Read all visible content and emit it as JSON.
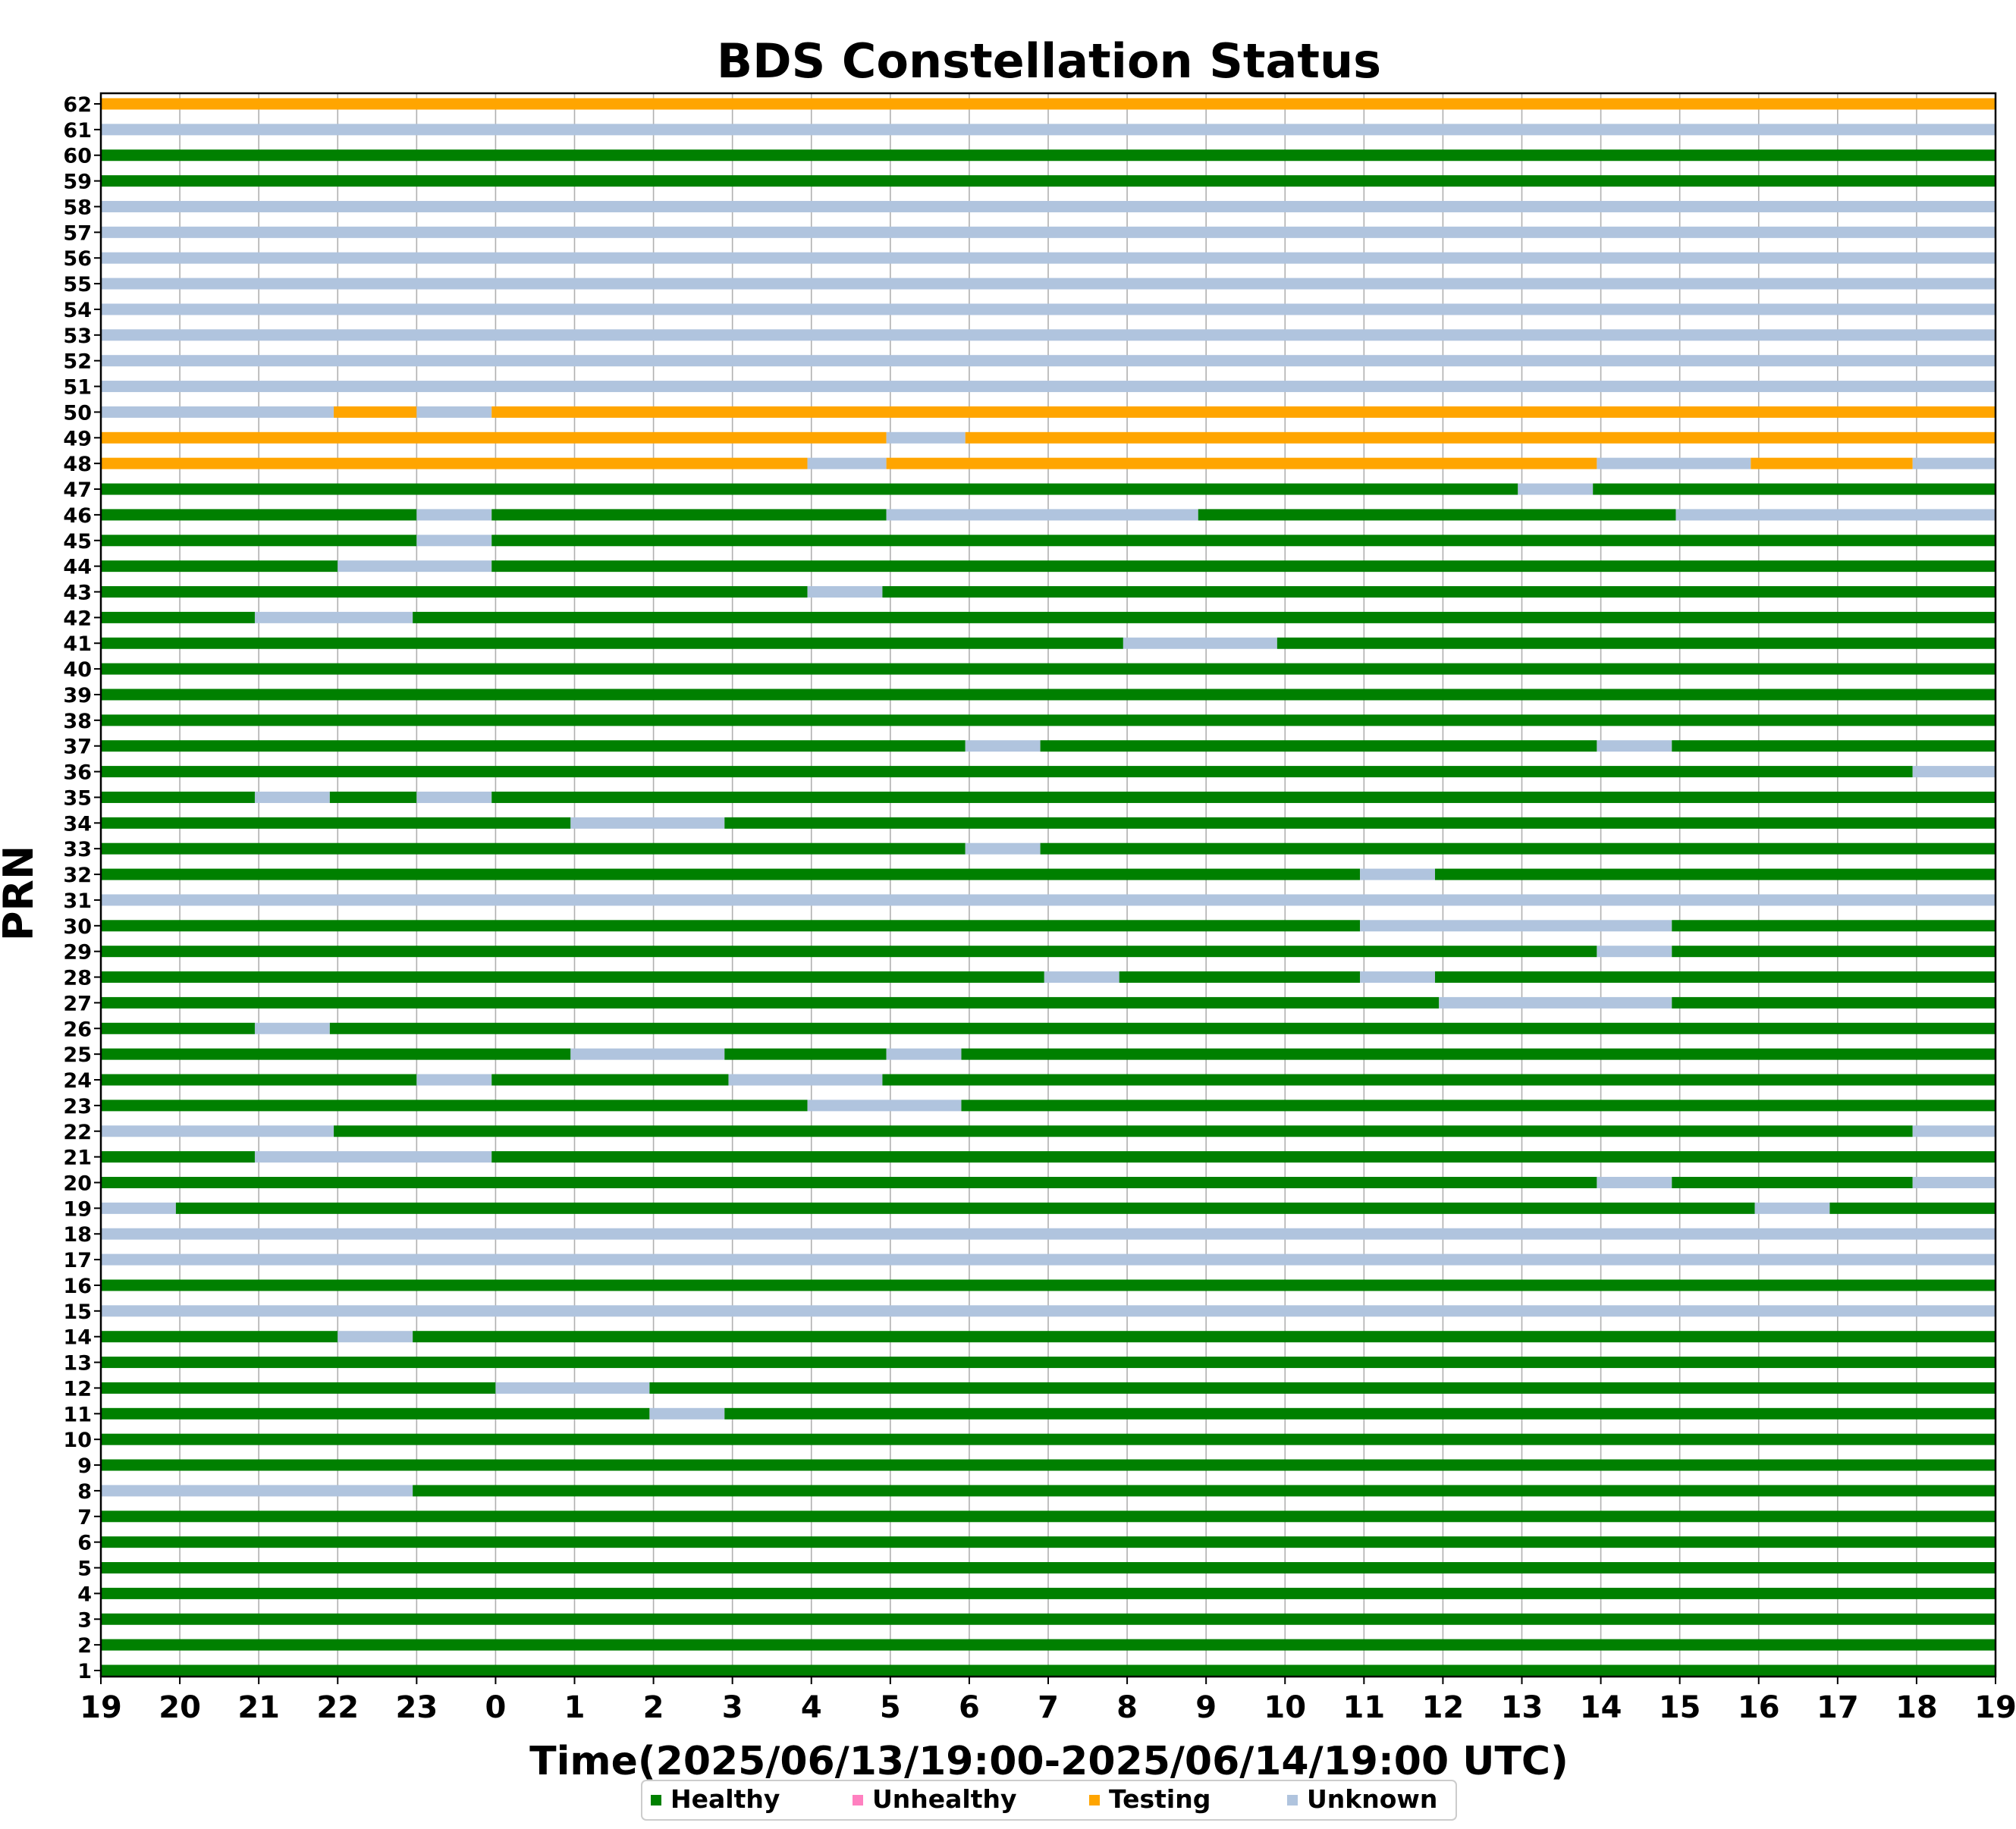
{
  "chart_data": {
    "type": "timeline",
    "title": "BDS Constellation Status",
    "xlabel": "Time(2025/06/13/19:00-2025/06/14/19:00 UTC)",
    "ylabel": "PRN",
    "x_unit": "hour_of_day_utc",
    "xlim": [
      19,
      43
    ],
    "x_tick_labels": [
      "19",
      "20",
      "21",
      "22",
      "23",
      "0",
      "1",
      "2",
      "3",
      "4",
      "5",
      "6",
      "7",
      "8",
      "9",
      "10",
      "11",
      "12",
      "13",
      "14",
      "15",
      "16",
      "17",
      "18",
      "19"
    ],
    "ylim": [
      1,
      62
    ],
    "grid": "vertical",
    "legend_placement": "bottom-center",
    "status_colors": {
      "Healthy": "#008000",
      "Unhealthy": "#ff80c0",
      "Testing": "#ffa500",
      "Unknown": "#b0c4de"
    },
    "legend": [
      {
        "key": "Healthy",
        "label": "Healthy"
      },
      {
        "key": "Unhealthy",
        "label": "Unhealthy"
      },
      {
        "key": "Testing",
        "label": "Testing"
      },
      {
        "key": "Unknown",
        "label": "Unknown"
      }
    ],
    "series": [
      {
        "prn": 62,
        "segments": [
          [
            19,
            43,
            "Testing"
          ]
        ]
      },
      {
        "prn": 61,
        "segments": [
          [
            19,
            43,
            "Unknown"
          ]
        ]
      },
      {
        "prn": 60,
        "segments": [
          [
            19,
            43,
            "Healthy"
          ]
        ]
      },
      {
        "prn": 59,
        "segments": [
          [
            19,
            43,
            "Healthy"
          ]
        ]
      },
      {
        "prn": 58,
        "segments": [
          [
            19,
            43,
            "Unknown"
          ]
        ]
      },
      {
        "prn": 57,
        "segments": [
          [
            19,
            43,
            "Unknown"
          ]
        ]
      },
      {
        "prn": 56,
        "segments": [
          [
            19,
            43,
            "Unknown"
          ]
        ]
      },
      {
        "prn": 55,
        "segments": [
          [
            19,
            43,
            "Unknown"
          ]
        ]
      },
      {
        "prn": 54,
        "segments": [
          [
            19,
            43,
            "Unknown"
          ]
        ]
      },
      {
        "prn": 53,
        "segments": [
          [
            19,
            43,
            "Unknown"
          ]
        ]
      },
      {
        "prn": 52,
        "segments": [
          [
            19,
            43,
            "Unknown"
          ]
        ]
      },
      {
        "prn": 51,
        "segments": [
          [
            19,
            43,
            "Unknown"
          ]
        ]
      },
      {
        "prn": 50,
        "segments": [
          [
            19,
            21.95,
            "Unknown"
          ],
          [
            21.95,
            23,
            "Testing"
          ],
          [
            23,
            23.95,
            "Unknown"
          ],
          [
            23.95,
            43,
            "Testing"
          ]
        ]
      },
      {
        "prn": 49,
        "segments": [
          [
            19,
            28.95,
            "Testing"
          ],
          [
            28.95,
            29.95,
            "Unknown"
          ],
          [
            29.95,
            43,
            "Testing"
          ]
        ]
      },
      {
        "prn": 48,
        "segments": [
          [
            19,
            27.95,
            "Testing"
          ],
          [
            27.95,
            28.95,
            "Unknown"
          ],
          [
            28.95,
            37.95,
            "Testing"
          ],
          [
            37.95,
            39.9,
            "Unknown"
          ],
          [
            39.9,
            41.95,
            "Testing"
          ],
          [
            41.95,
            43,
            "Unknown"
          ]
        ]
      },
      {
        "prn": 47,
        "segments": [
          [
            19,
            36.95,
            "Healthy"
          ],
          [
            36.95,
            37.9,
            "Unknown"
          ],
          [
            37.9,
            43,
            "Healthy"
          ]
        ]
      },
      {
        "prn": 46,
        "segments": [
          [
            19,
            23,
            "Healthy"
          ],
          [
            23,
            23.95,
            "Unknown"
          ],
          [
            23.95,
            28.95,
            "Healthy"
          ],
          [
            28.95,
            32.9,
            "Unknown"
          ],
          [
            32.9,
            38.95,
            "Healthy"
          ],
          [
            38.95,
            43,
            "Unknown"
          ]
        ]
      },
      {
        "prn": 45,
        "segments": [
          [
            19,
            23,
            "Healthy"
          ],
          [
            23,
            23.95,
            "Unknown"
          ],
          [
            23.95,
            43,
            "Healthy"
          ]
        ]
      },
      {
        "prn": 44,
        "segments": [
          [
            19,
            22,
            "Healthy"
          ],
          [
            22,
            23.95,
            "Unknown"
          ],
          [
            23.95,
            43,
            "Healthy"
          ]
        ]
      },
      {
        "prn": 43,
        "segments": [
          [
            19,
            27.95,
            "Healthy"
          ],
          [
            27.95,
            28.9,
            "Unknown"
          ],
          [
            28.9,
            43,
            "Healthy"
          ]
        ]
      },
      {
        "prn": 42,
        "segments": [
          [
            19,
            20.95,
            "Healthy"
          ],
          [
            20.95,
            22.95,
            "Unknown"
          ],
          [
            22.95,
            43,
            "Healthy"
          ]
        ]
      },
      {
        "prn": 41,
        "segments": [
          [
            19,
            31.95,
            "Healthy"
          ],
          [
            31.95,
            33.9,
            "Unknown"
          ],
          [
            33.9,
            43,
            "Healthy"
          ]
        ]
      },
      {
        "prn": 40,
        "segments": [
          [
            19,
            43,
            "Healthy"
          ]
        ]
      },
      {
        "prn": 39,
        "segments": [
          [
            19,
            43,
            "Healthy"
          ]
        ]
      },
      {
        "prn": 38,
        "segments": [
          [
            19,
            43,
            "Healthy"
          ]
        ]
      },
      {
        "prn": 37,
        "segments": [
          [
            19,
            29.95,
            "Healthy"
          ],
          [
            29.95,
            30.9,
            "Unknown"
          ],
          [
            30.9,
            37.95,
            "Healthy"
          ],
          [
            37.95,
            38.9,
            "Unknown"
          ],
          [
            38.9,
            43,
            "Healthy"
          ]
        ]
      },
      {
        "prn": 36,
        "segments": [
          [
            19,
            41.95,
            "Healthy"
          ],
          [
            41.95,
            43,
            "Unknown"
          ]
        ]
      },
      {
        "prn": 35,
        "segments": [
          [
            19,
            20.95,
            "Healthy"
          ],
          [
            20.95,
            21.9,
            "Unknown"
          ],
          [
            21.9,
            23,
            "Healthy"
          ],
          [
            23,
            23.95,
            "Unknown"
          ],
          [
            23.95,
            43,
            "Healthy"
          ]
        ]
      },
      {
        "prn": 34,
        "segments": [
          [
            19,
            24.95,
            "Healthy"
          ],
          [
            24.95,
            26.9,
            "Unknown"
          ],
          [
            26.9,
            43,
            "Healthy"
          ]
        ]
      },
      {
        "prn": 33,
        "segments": [
          [
            19,
            29.95,
            "Healthy"
          ],
          [
            29.95,
            30.9,
            "Unknown"
          ],
          [
            30.9,
            43,
            "Healthy"
          ]
        ]
      },
      {
        "prn": 32,
        "segments": [
          [
            19,
            34.95,
            "Healthy"
          ],
          [
            34.95,
            35.9,
            "Unknown"
          ],
          [
            35.9,
            43,
            "Healthy"
          ]
        ]
      },
      {
        "prn": 31,
        "segments": [
          [
            19,
            43,
            "Unknown"
          ]
        ]
      },
      {
        "prn": 30,
        "segments": [
          [
            19,
            34.95,
            "Healthy"
          ],
          [
            34.95,
            38.9,
            "Unknown"
          ],
          [
            38.9,
            43,
            "Healthy"
          ]
        ]
      },
      {
        "prn": 29,
        "segments": [
          [
            19,
            37.95,
            "Healthy"
          ],
          [
            37.95,
            38.9,
            "Unknown"
          ],
          [
            38.9,
            43,
            "Healthy"
          ]
        ]
      },
      {
        "prn": 28,
        "segments": [
          [
            19,
            30.95,
            "Healthy"
          ],
          [
            30.95,
            31.9,
            "Unknown"
          ],
          [
            31.9,
            34.95,
            "Healthy"
          ],
          [
            34.95,
            35.9,
            "Unknown"
          ],
          [
            35.9,
            43,
            "Healthy"
          ]
        ]
      },
      {
        "prn": 27,
        "segments": [
          [
            19,
            35.95,
            "Healthy"
          ],
          [
            35.95,
            38.9,
            "Unknown"
          ],
          [
            38.9,
            43,
            "Healthy"
          ]
        ]
      },
      {
        "prn": 26,
        "segments": [
          [
            19,
            20.95,
            "Healthy"
          ],
          [
            20.95,
            21.9,
            "Unknown"
          ],
          [
            21.9,
            43,
            "Healthy"
          ]
        ]
      },
      {
        "prn": 25,
        "segments": [
          [
            19,
            24.95,
            "Healthy"
          ],
          [
            24.95,
            26.9,
            "Unknown"
          ],
          [
            26.9,
            28.95,
            "Healthy"
          ],
          [
            28.95,
            29.9,
            "Unknown"
          ],
          [
            29.9,
            43,
            "Healthy"
          ]
        ]
      },
      {
        "prn": 24,
        "segments": [
          [
            19,
            23,
            "Healthy"
          ],
          [
            23,
            23.95,
            "Unknown"
          ],
          [
            23.95,
            26.95,
            "Healthy"
          ],
          [
            26.95,
            28.9,
            "Unknown"
          ],
          [
            28.9,
            43,
            "Healthy"
          ]
        ]
      },
      {
        "prn": 23,
        "segments": [
          [
            19,
            27.95,
            "Healthy"
          ],
          [
            27.95,
            29.9,
            "Unknown"
          ],
          [
            29.9,
            43,
            "Healthy"
          ]
        ]
      },
      {
        "prn": 22,
        "segments": [
          [
            19,
            21.95,
            "Unknown"
          ],
          [
            21.95,
            41.95,
            "Healthy"
          ],
          [
            41.95,
            43,
            "Unknown"
          ]
        ]
      },
      {
        "prn": 21,
        "segments": [
          [
            19,
            20.95,
            "Healthy"
          ],
          [
            20.95,
            23.95,
            "Unknown"
          ],
          [
            23.95,
            43,
            "Healthy"
          ]
        ]
      },
      {
        "prn": 20,
        "segments": [
          [
            19,
            37.95,
            "Healthy"
          ],
          [
            37.95,
            38.9,
            "Unknown"
          ],
          [
            38.9,
            41.95,
            "Healthy"
          ],
          [
            41.95,
            43,
            "Unknown"
          ]
        ]
      },
      {
        "prn": 19,
        "segments": [
          [
            19,
            19.95,
            "Unknown"
          ],
          [
            19.95,
            39.95,
            "Healthy"
          ],
          [
            39.95,
            40.9,
            "Unknown"
          ],
          [
            40.9,
            43,
            "Healthy"
          ]
        ]
      },
      {
        "prn": 18,
        "segments": [
          [
            19,
            43,
            "Unknown"
          ]
        ]
      },
      {
        "prn": 17,
        "segments": [
          [
            19,
            43,
            "Unknown"
          ]
        ]
      },
      {
        "prn": 16,
        "segments": [
          [
            19,
            43,
            "Healthy"
          ]
        ]
      },
      {
        "prn": 15,
        "segments": [
          [
            19,
            43,
            "Unknown"
          ]
        ]
      },
      {
        "prn": 14,
        "segments": [
          [
            19,
            22,
            "Healthy"
          ],
          [
            22,
            22.95,
            "Unknown"
          ],
          [
            22.95,
            43,
            "Healthy"
          ]
        ]
      },
      {
        "prn": 13,
        "segments": [
          [
            19,
            43,
            "Healthy"
          ]
        ]
      },
      {
        "prn": 12,
        "segments": [
          [
            19,
            24,
            "Healthy"
          ],
          [
            24,
            25.95,
            "Unknown"
          ],
          [
            25.95,
            43,
            "Healthy"
          ]
        ]
      },
      {
        "prn": 11,
        "segments": [
          [
            19,
            25.95,
            "Healthy"
          ],
          [
            25.95,
            26.9,
            "Unknown"
          ],
          [
            26.9,
            43,
            "Healthy"
          ]
        ]
      },
      {
        "prn": 10,
        "segments": [
          [
            19,
            43,
            "Healthy"
          ]
        ]
      },
      {
        "prn": 9,
        "segments": [
          [
            19,
            43,
            "Healthy"
          ]
        ]
      },
      {
        "prn": 8,
        "segments": [
          [
            19,
            22.95,
            "Unknown"
          ],
          [
            22.95,
            43,
            "Healthy"
          ]
        ]
      },
      {
        "prn": 7,
        "segments": [
          [
            19,
            43,
            "Healthy"
          ]
        ]
      },
      {
        "prn": 6,
        "segments": [
          [
            19,
            43,
            "Healthy"
          ]
        ]
      },
      {
        "prn": 5,
        "segments": [
          [
            19,
            43,
            "Healthy"
          ]
        ]
      },
      {
        "prn": 4,
        "segments": [
          [
            19,
            43,
            "Healthy"
          ]
        ]
      },
      {
        "prn": 3,
        "segments": [
          [
            19,
            43,
            "Healthy"
          ]
        ]
      },
      {
        "prn": 2,
        "segments": [
          [
            19,
            43,
            "Healthy"
          ]
        ]
      },
      {
        "prn": 1,
        "segments": [
          [
            19,
            43,
            "Healthy"
          ]
        ]
      }
    ]
  }
}
